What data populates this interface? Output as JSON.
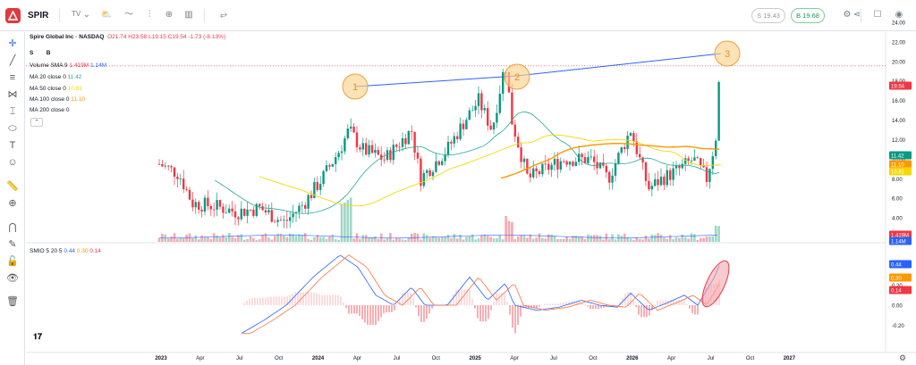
{
  "header": {
    "symbol": "SPIR",
    "source_label": "TV",
    "sell_label": "S 19.43",
    "buy_label": "B 19.68"
  },
  "legend": {
    "title": "Spire Global Inc · NASDAQ",
    "o": "O21.74",
    "h": "H23.58",
    "l": "L19.15",
    "c": "C19.54",
    "chg": "-1.73 (-8.13%)",
    "s_label": "S",
    "b_label": "B",
    "volume_label": "Volume SMA 9",
    "volume_v1": "1.419M",
    "volume_v2": "1.14M",
    "ma20_label": "MA 20 close 0",
    "ma20_v": "11.42",
    "ma50_label": "MA 50 close 0",
    "ma50_v": "10.81",
    "ma100_label": "MA 100 close 0",
    "ma100_v": "11.10",
    "ma200_label": "MA 200 close 0",
    "smio_label": "SMIO 5 20 5",
    "smio_v1": "0.44",
    "smio_v2": "0.30",
    "smio_v3": "0.14"
  },
  "price_axis": {
    "ticks": [
      "24.00",
      "22.00",
      "20.00",
      "18.00",
      "16.00",
      "14.00",
      "12.00",
      "10.00",
      "8.00",
      "6.00",
      "4.00",
      "2.00"
    ],
    "tags": [
      {
        "text": "19.54",
        "color": "#f23645"
      },
      {
        "text": "11.42",
        "color": "#089981"
      },
      {
        "text": "11.10",
        "color": "#ff9800"
      },
      {
        "text": "10.81",
        "color": "#f5d800"
      },
      {
        "text": "1.419M",
        "color": "#f23645"
      },
      {
        "text": "1.14M",
        "color": "#2962ff"
      }
    ]
  },
  "osc_axis": {
    "ticks": [
      "0.40",
      "0.20",
      "0.00",
      "-0.20"
    ],
    "tags": [
      {
        "text": "0.44",
        "color": "#2962ff"
      },
      {
        "text": "0.30",
        "color": "#ff9800"
      },
      {
        "text": "0.14",
        "color": "#f23645"
      }
    ]
  },
  "time_axis": [
    "2023",
    "Apr",
    "Jul",
    "Oct",
    "2024",
    "Apr",
    "Jul",
    "Oct",
    "2025",
    "Apr",
    "Jul",
    "Oct",
    "2026",
    "Apr",
    "Jul",
    "Oct",
    "2027"
  ],
  "annotations": [
    "1",
    "2",
    "3"
  ],
  "colors": {
    "up": "#089981",
    "down": "#f23645",
    "ma20": "#26a69a",
    "ma50": "#f5d800",
    "ma100": "#ff9800",
    "trend": "#2962ff"
  }
}
